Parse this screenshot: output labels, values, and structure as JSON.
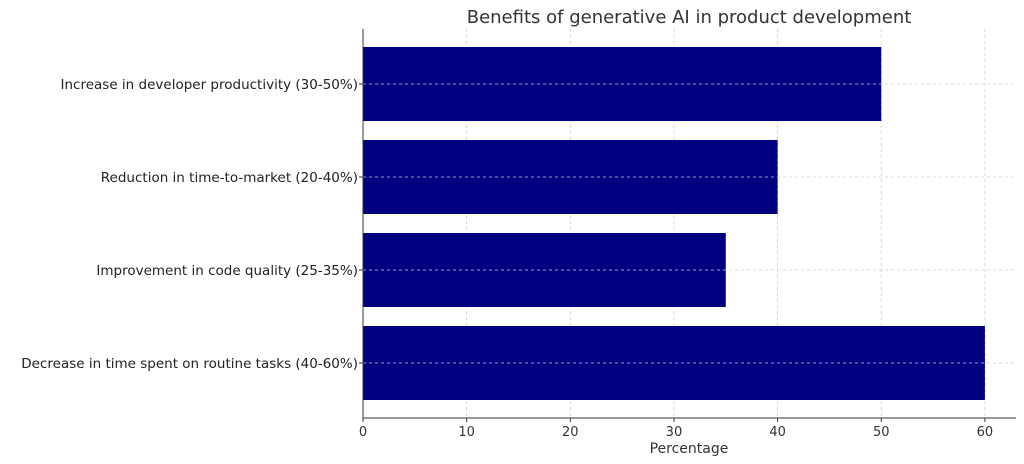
{
  "chart_data": {
    "type": "bar",
    "orientation": "horizontal",
    "title": "Benefits of generative AI in product development",
    "xlabel": "Percentage",
    "ylabel": "",
    "categories": [
      "Decrease in time spent on routine tasks (40-60%)",
      "Improvement in code quality (25-35%)",
      "Reduction in time-to-market (20-40%)",
      "Increase in developer productivity (30-50%)"
    ],
    "values": [
      60,
      35,
      40,
      50
    ],
    "xlim": [
      0,
      63
    ],
    "xticks": [
      0,
      10,
      20,
      30,
      40,
      50,
      60
    ],
    "grid": true,
    "bar_color": "#000080"
  }
}
